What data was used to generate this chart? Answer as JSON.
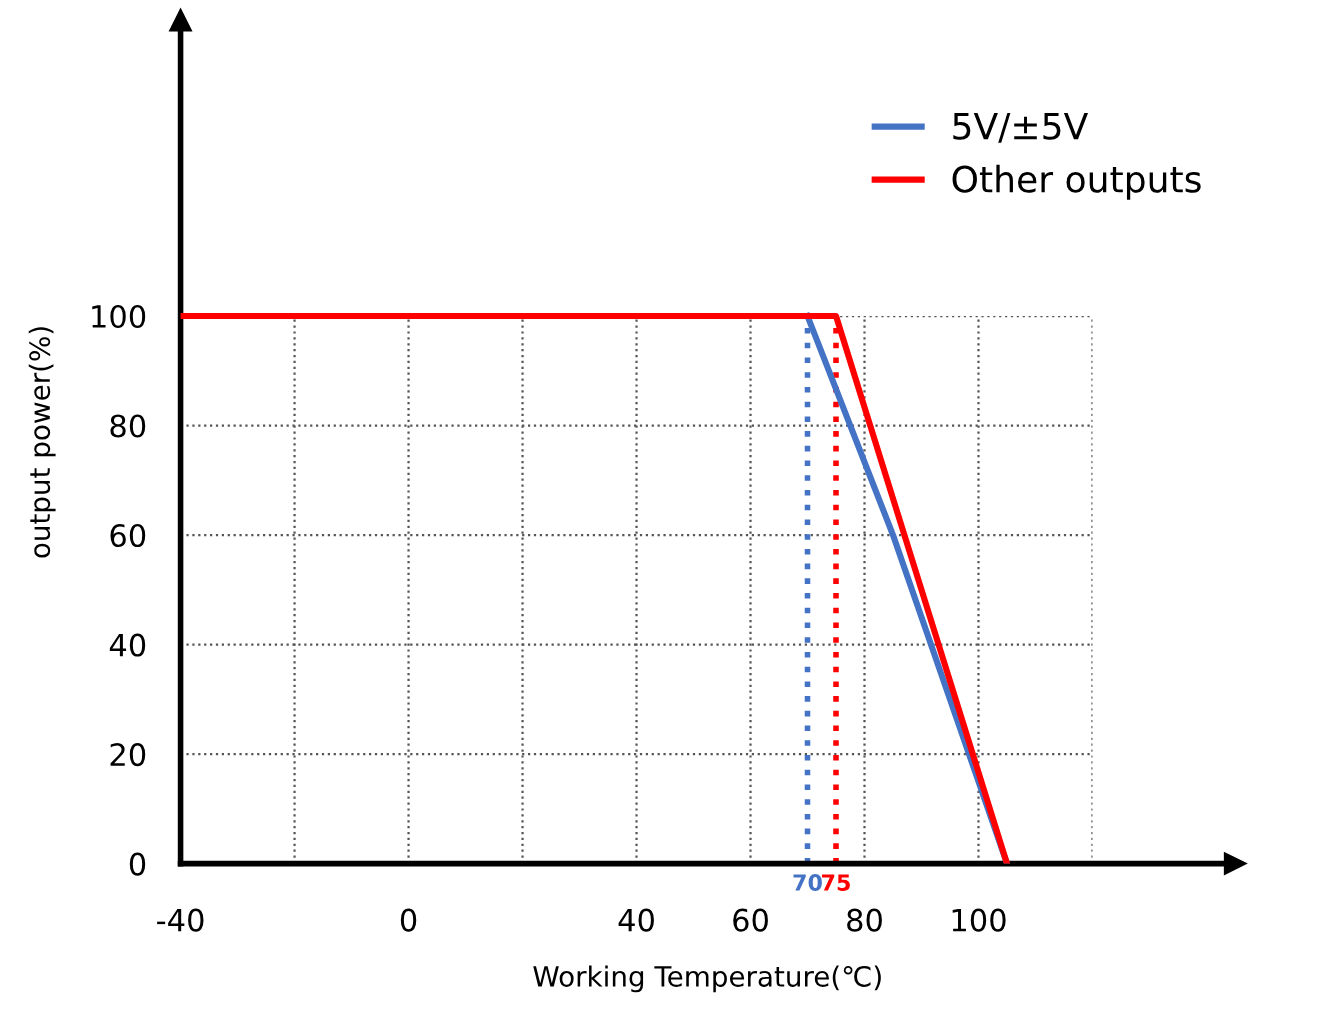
{
  "chart_data": {
    "type": "line",
    "xlabel": "Working Temperature(℃)",
    "ylabel": "output power(%)",
    "series": [
      {
        "name": "5V/±5V",
        "color": "#4472c4",
        "x": [
          70,
          85,
          105
        ],
        "values": [
          100,
          60,
          0
        ]
      },
      {
        "name": "Other outputs",
        "color": "#ff0000",
        "x": [
          -40,
          75,
          105
        ],
        "values": [
          100,
          100,
          0
        ]
      }
    ],
    "xlim": [
      -40,
      145
    ],
    "ylim": [
      0,
      154
    ],
    "xticks": [
      -40,
      {
        "value": -20,
        "label": null
      },
      0,
      {
        "value": 20,
        "label": null
      },
      40,
      60,
      80,
      100,
      {
        "value": 120,
        "label": null
      }
    ],
    "yticks": [
      0,
      20,
      40,
      60,
      80,
      100
    ],
    "ref_lines": [
      {
        "axis": "x",
        "value": 70,
        "label": "70",
        "color": "#4472c4",
        "line_style": "dotted"
      },
      {
        "axis": "x",
        "value": 75,
        "label": "75",
        "color": "#ff0000",
        "line_style": "dotted"
      }
    ],
    "grid": true,
    "legend": "top right",
    "line_style": "solid",
    "marker": "none"
  }
}
